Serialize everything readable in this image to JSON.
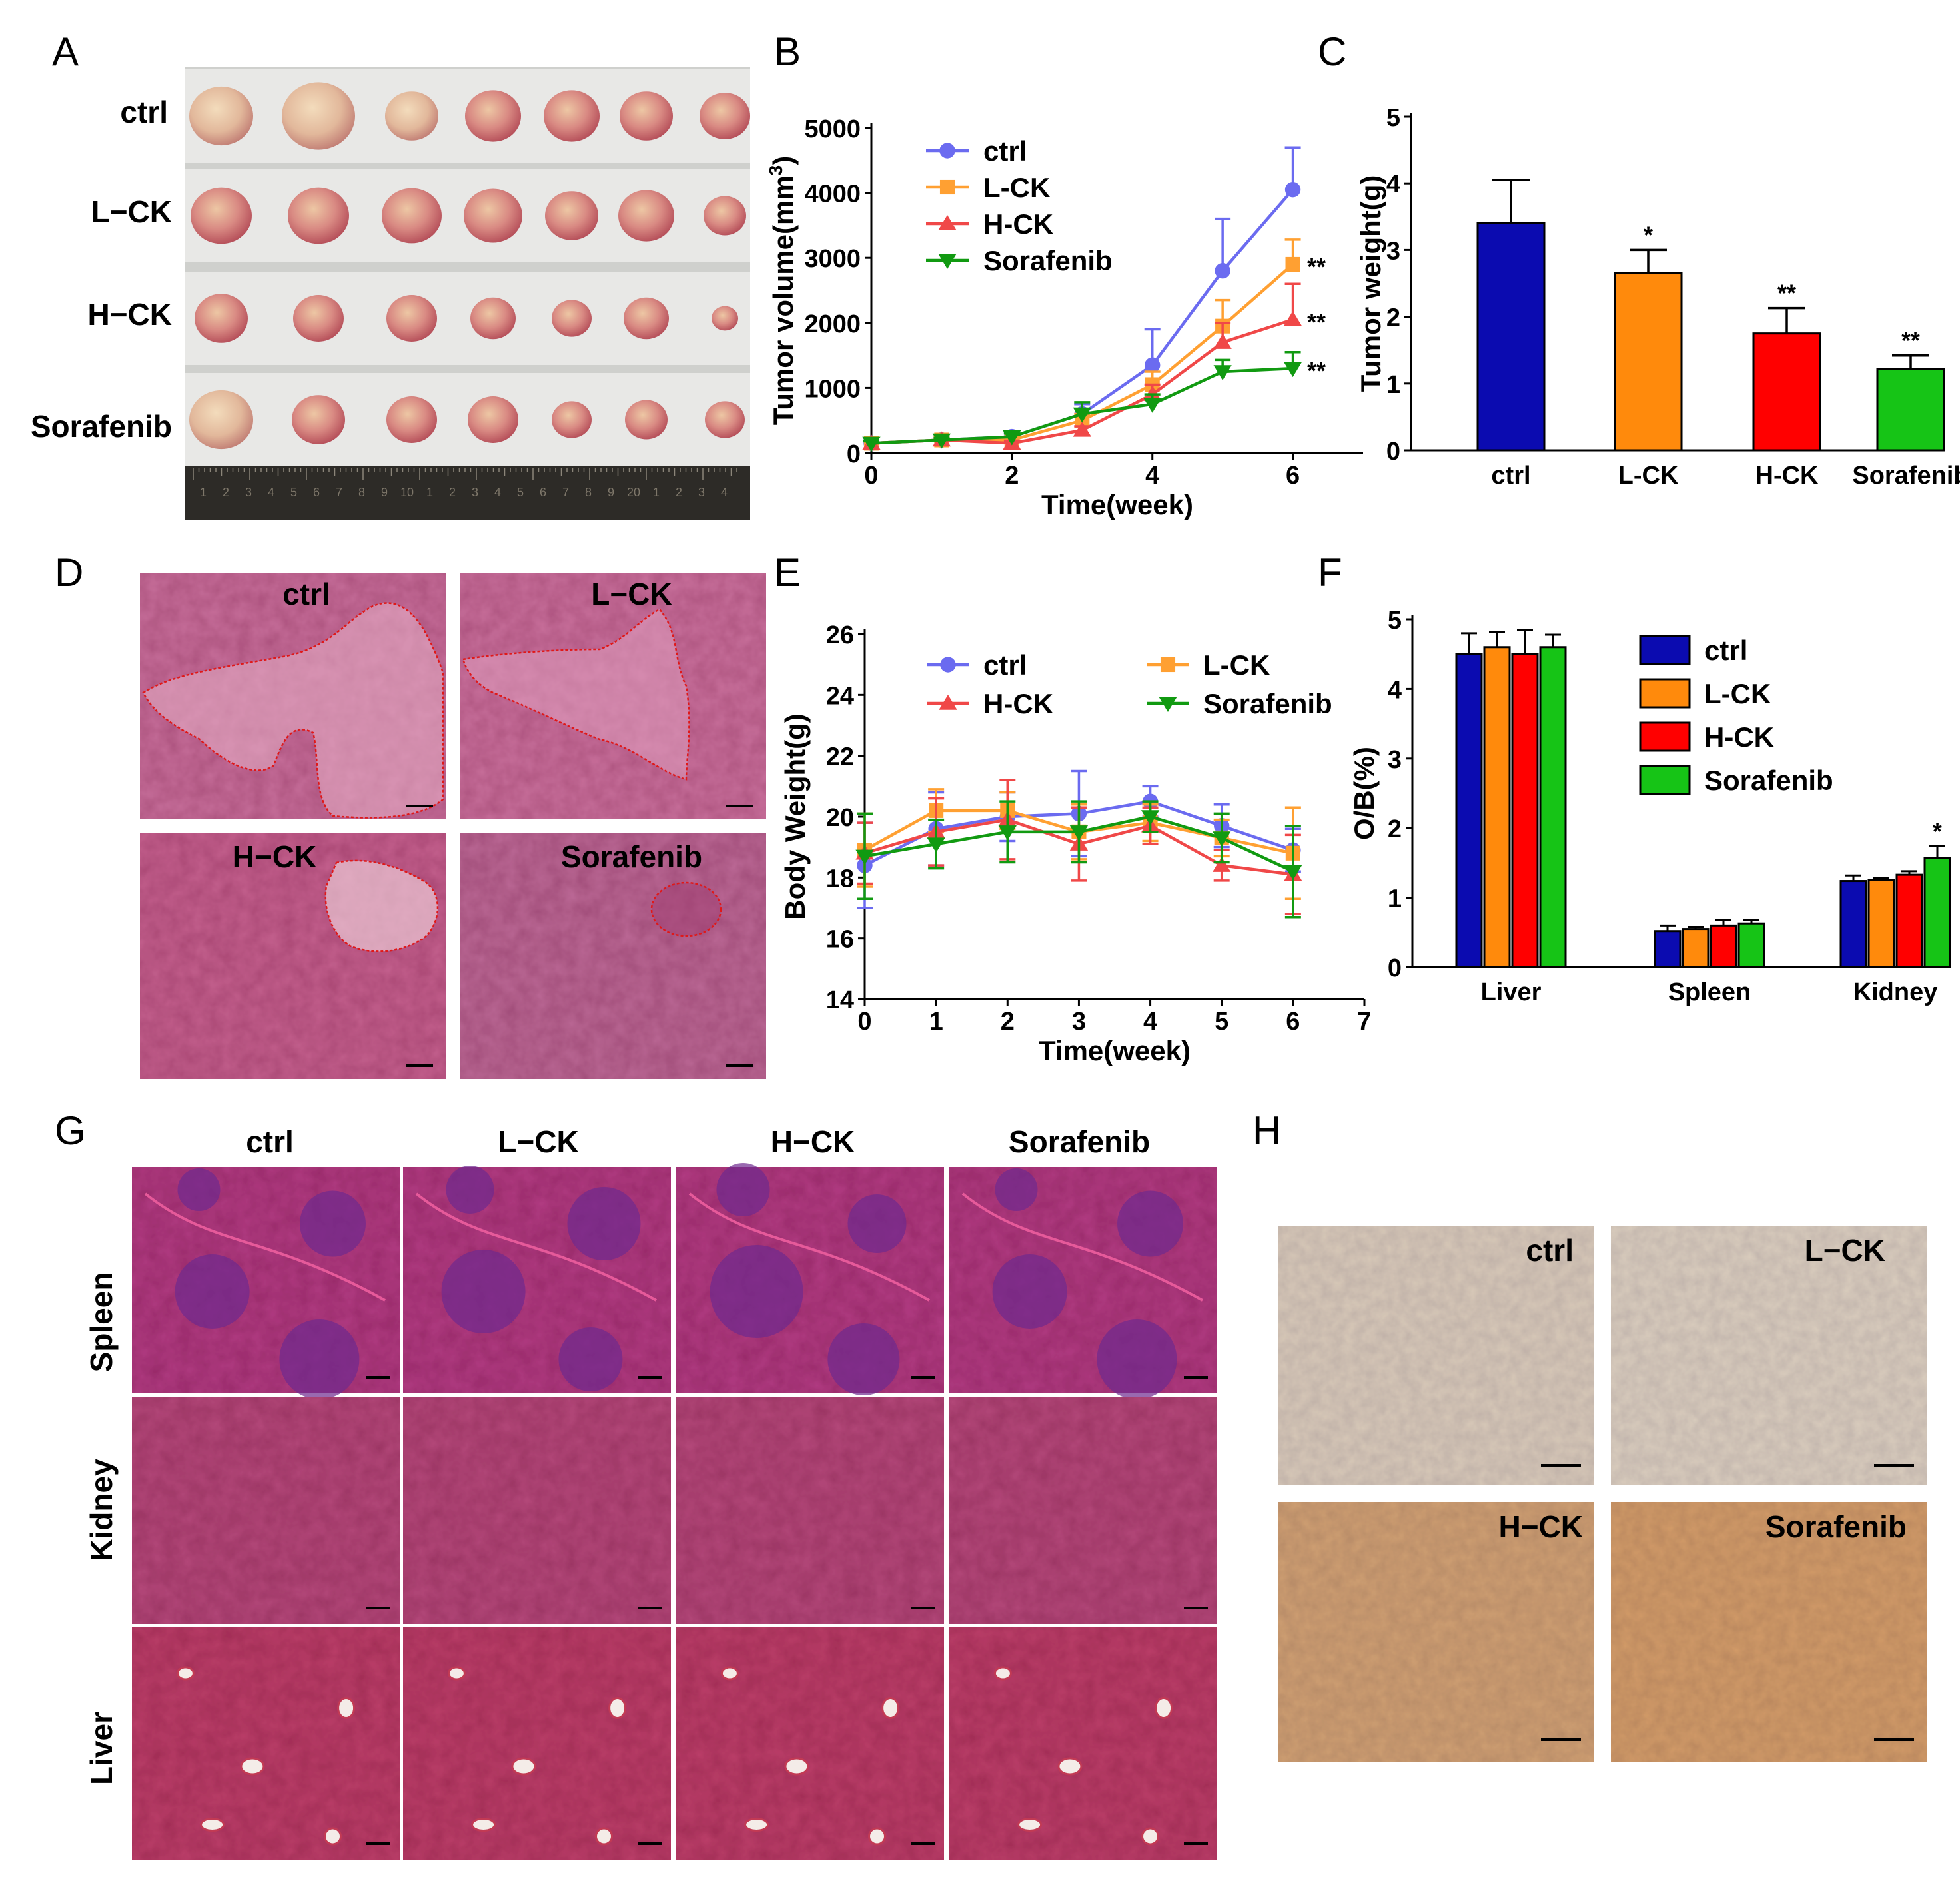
{
  "panels": {
    "A": "A",
    "B": "B",
    "C": "C",
    "D": "D",
    "E": "E",
    "F": "F",
    "G": "G",
    "H": "H"
  },
  "colors": {
    "ctrl_line": "#6b6bf0",
    "lck_line": "#ffa032",
    "hck_line": "#f04848",
    "sora_line": "#119a11",
    "ctrl_bar": "#0b0bb0",
    "lck_bar": "#ff8a0c",
    "hck_bar": "#ff0000",
    "sora_bar": "#16c416"
  },
  "panel_a": {
    "rows": [
      "ctrl",
      "L−CK",
      "H−CK",
      "Sorafenib"
    ],
    "ruler_numbers": [
      "1",
      "2",
      "3",
      "4",
      "5",
      "6",
      "7",
      "8",
      "9",
      "10",
      "1",
      "2",
      "3",
      "4",
      "5",
      "6",
      "7",
      "8",
      "9",
      "20",
      "1",
      "2",
      "3",
      "4"
    ]
  },
  "panel_d": {
    "labels": [
      "ctrl",
      "L−CK",
      "H−CK",
      "Sorafenib"
    ]
  },
  "panel_g": {
    "columns": [
      "ctrl",
      "L−CK",
      "H−CK",
      "Sorafenib"
    ],
    "rows": [
      "Spleen",
      "Kidney",
      "Liver"
    ]
  },
  "panel_h": {
    "labels": [
      "ctrl",
      "L−CK",
      "H−CK",
      "Sorafenib"
    ]
  },
  "chart_data": [
    {
      "id": "B",
      "type": "line",
      "xlabel": "Time(week)",
      "ylabel": "Tumor volume(mm3)",
      "ylabel_main": "Tumor volume(mm",
      "ylabel_sup": "3",
      "ylabel_tail": ")",
      "xlim": [
        0,
        7
      ],
      "ylim": [
        0,
        5000
      ],
      "xticks": [
        0,
        2,
        4,
        6
      ],
      "yticks": [
        0,
        1000,
        2000,
        3000,
        4000,
        5000
      ],
      "x": [
        0,
        1,
        2,
        3,
        4,
        5,
        6
      ],
      "series": [
        {
          "name": "ctrl",
          "marker": "circle",
          "values": [
            150,
            200,
            250,
            600,
            1350,
            2800,
            4050
          ],
          "err": [
            40,
            50,
            60,
            150,
            550,
            800,
            650
          ],
          "sig": ""
        },
        {
          "name": "L-CK",
          "marker": "square",
          "values": [
            150,
            200,
            200,
            500,
            1050,
            1950,
            2900
          ],
          "err": [
            30,
            40,
            50,
            100,
            200,
            400,
            380
          ],
          "sig": "**"
        },
        {
          "name": "H-CK",
          "marker": "triangle",
          "values": [
            150,
            200,
            150,
            350,
            900,
            1700,
            2050
          ],
          "err": [
            30,
            30,
            40,
            60,
            150,
            300,
            550
          ],
          "sig": "**"
        },
        {
          "name": "Sorafenib",
          "marker": "tri-down",
          "values": [
            150,
            200,
            250,
            600,
            750,
            1250,
            1300
          ],
          "err": [
            30,
            30,
            50,
            180,
            150,
            180,
            250
          ],
          "sig": "**"
        }
      ]
    },
    {
      "id": "C",
      "type": "bar",
      "ylabel": "Tumor weight(g)",
      "ylim": [
        0,
        5
      ],
      "yticks": [
        0,
        1,
        2,
        3,
        4,
        5
      ],
      "categories": [
        "ctrl",
        "L-CK",
        "H-CK",
        "Sorafenib"
      ],
      "values": [
        3.4,
        2.65,
        1.75,
        1.22
      ],
      "err": [
        0.65,
        0.35,
        0.38,
        0.2
      ],
      "sig": [
        "",
        "*",
        "**",
        "**"
      ]
    },
    {
      "id": "E",
      "type": "line",
      "xlabel": "Time(week)",
      "ylabel": "Body Weight(g)",
      "xlim": [
        0,
        7
      ],
      "ylim": [
        14,
        26
      ],
      "xticks": [
        0,
        1,
        2,
        3,
        4,
        5,
        6,
        7
      ],
      "yticks": [
        14,
        16,
        18,
        20,
        22,
        24,
        26
      ],
      "x": [
        0,
        1,
        2,
        3,
        4,
        5,
        6
      ],
      "series": [
        {
          "name": "ctrl",
          "marker": "circle",
          "values": [
            18.4,
            19.6,
            20.0,
            20.1,
            20.5,
            19.7,
            18.9
          ],
          "err": [
            1.4,
            1.2,
            0.8,
            1.4,
            0.5,
            0.7,
            0.7
          ]
        },
        {
          "name": "L-CK",
          "marker": "square",
          "values": [
            18.9,
            20.2,
            20.2,
            19.5,
            19.8,
            19.3,
            18.8
          ],
          "err": [
            1.2,
            0.7,
            0.6,
            0.9,
            0.6,
            0.6,
            1.5
          ]
        },
        {
          "name": "H-CK",
          "marker": "triangle",
          "values": [
            18.8,
            19.5,
            19.9,
            19.1,
            19.7,
            18.4,
            18.1
          ],
          "err": [
            1.0,
            1.1,
            1.3,
            1.2,
            0.6,
            0.5,
            1.3
          ]
        },
        {
          "name": "Sorafenib",
          "marker": "tri-down",
          "values": [
            18.7,
            19.1,
            19.5,
            19.5,
            20.0,
            19.3,
            18.2
          ],
          "err": [
            1.4,
            0.8,
            1.0,
            1.0,
            0.5,
            0.8,
            1.5
          ]
        }
      ]
    },
    {
      "id": "F",
      "type": "bar",
      "ylabel": "O/B(%)",
      "ylim": [
        0,
        5
      ],
      "yticks": [
        0,
        1,
        2,
        3,
        4,
        5
      ],
      "categories": [
        "Liver",
        "Spleen",
        "Kidney"
      ],
      "series": [
        {
          "name": "ctrl",
          "values": [
            4.5,
            0.52,
            1.24
          ],
          "err": [
            0.3,
            0.08,
            0.08
          ]
        },
        {
          "name": "L-CK",
          "values": [
            4.6,
            0.55,
            1.25
          ],
          "err": [
            0.22,
            0.03,
            0.03
          ]
        },
        {
          "name": "H-CK",
          "values": [
            4.5,
            0.6,
            1.33
          ],
          "err": [
            0.35,
            0.08,
            0.05
          ]
        },
        {
          "name": "Sorafenib",
          "values": [
            4.6,
            0.63,
            1.57
          ],
          "err": [
            0.18,
            0.05,
            0.17
          ]
        }
      ],
      "sig": [
        {
          "category": "Kidney",
          "series": "Sorafenib",
          "text": "*"
        }
      ]
    }
  ]
}
